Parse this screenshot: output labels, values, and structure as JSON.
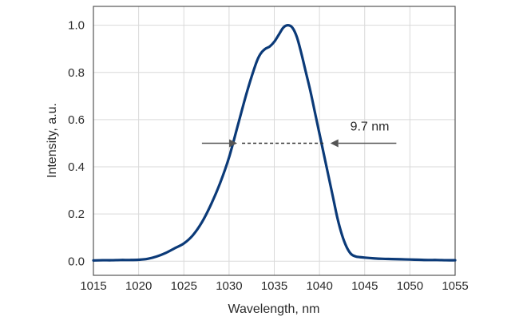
{
  "chart_data": {
    "type": "line",
    "title": "",
    "xlabel": "Wavelength, nm",
    "ylabel": "Intensity, a.u.",
    "xlim": [
      1015,
      1055
    ],
    "ylim": [
      -0.06,
      1.08
    ],
    "xticks": [
      1015,
      1020,
      1025,
      1030,
      1035,
      1040,
      1045,
      1050,
      1055
    ],
    "yticks": [
      0.0,
      0.2,
      0.4,
      0.6,
      0.8,
      1.0
    ],
    "xtick_labels": [
      "1015",
      "1020",
      "1025",
      "1030",
      "1035",
      "1040",
      "1045",
      "1050",
      "1055"
    ],
    "ytick_labels": [
      "0.0",
      "0.2",
      "0.4",
      "0.6",
      "0.8",
      "1.0"
    ],
    "grid": true,
    "line_color": "#0b3a78",
    "series": [
      {
        "x": [
          1015,
          1016,
          1017,
          1018,
          1019,
          1020,
          1021,
          1022,
          1023,
          1024,
          1025,
          1026,
          1027,
          1028,
          1029,
          1030,
          1031,
          1032,
          1033,
          1033.5,
          1034,
          1034.5,
          1035,
          1035.5,
          1036,
          1036.5,
          1037,
          1037.5,
          1038,
          1038.5,
          1039,
          1039.5,
          1040,
          1040.5,
          1041,
          1041.5,
          1042,
          1042.5,
          1043,
          1043.5,
          1044,
          1044.5,
          1045,
          1046,
          1047,
          1048,
          1049,
          1050,
          1051,
          1052,
          1053,
          1054,
          1055
        ],
        "y": [
          0.003,
          0.004,
          0.004,
          0.005,
          0.005,
          0.006,
          0.01,
          0.02,
          0.035,
          0.055,
          0.075,
          0.11,
          0.165,
          0.24,
          0.33,
          0.44,
          0.58,
          0.72,
          0.84,
          0.88,
          0.9,
          0.91,
          0.93,
          0.96,
          0.99,
          1.0,
          0.99,
          0.95,
          0.88,
          0.8,
          0.72,
          0.63,
          0.54,
          0.45,
          0.36,
          0.27,
          0.18,
          0.11,
          0.06,
          0.03,
          0.02,
          0.017,
          0.015,
          0.012,
          0.01,
          0.009,
          0.008,
          0.007,
          0.006,
          0.005,
          0.005,
          0.004,
          0.004
        ]
      }
    ],
    "annotation": {
      "text": "9.7 nm",
      "x_start": 1030.9,
      "x_end": 1041.2,
      "y": 0.5,
      "arrow_left_from": 1027,
      "arrow_right_from": 1048.5
    }
  }
}
